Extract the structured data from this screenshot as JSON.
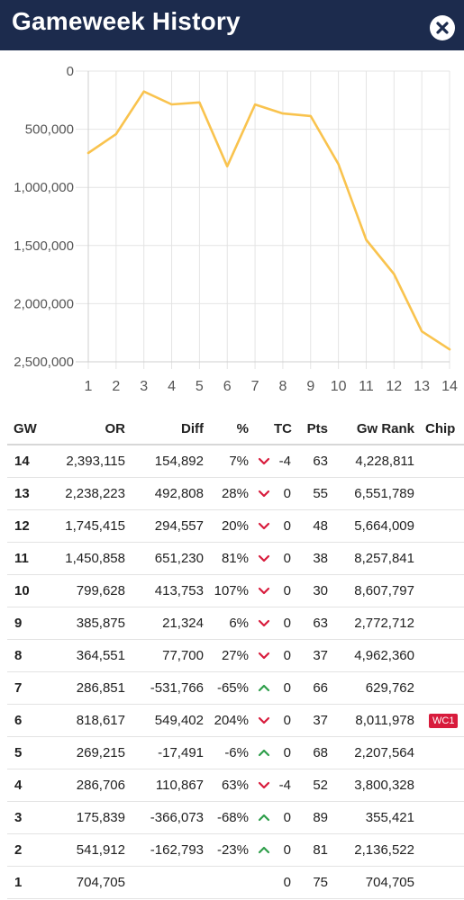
{
  "header": {
    "title": "Gameweek History"
  },
  "colors": {
    "header_bg": "#1c2b4d",
    "line": "#f9c34e",
    "up": "#2e9e4a",
    "down": "#d81b3c",
    "chip": "#d81b3c"
  },
  "chart_data": {
    "type": "line",
    "x": [
      1,
      2,
      3,
      4,
      5,
      6,
      7,
      8,
      9,
      10,
      11,
      12,
      13,
      14
    ],
    "values": [
      704705,
      541912,
      175839,
      286706,
      269215,
      818617,
      286851,
      364551,
      385875,
      799628,
      1450858,
      1745415,
      2238223,
      2393115
    ],
    "x_ticks": [
      "1",
      "2",
      "3",
      "4",
      "5",
      "6",
      "7",
      "8",
      "9",
      "10",
      "11",
      "12",
      "13",
      "14"
    ],
    "y_ticks": [
      "0",
      "500,000",
      "1,000,000",
      "1,500,000",
      "2,000,000",
      "2,500,000"
    ],
    "ylim": [
      0,
      2500000
    ],
    "y_inverted": true,
    "grid": true,
    "title": "",
    "xlabel": "",
    "ylabel": ""
  },
  "table": {
    "headers": {
      "gw": "GW",
      "or": "OR",
      "diff": "Diff",
      "pct": "%",
      "tc": "TC",
      "pts": "Pts",
      "gwrank": "Gw Rank",
      "chip": "Chip"
    },
    "rows": [
      {
        "gw": "14",
        "or": "2,393,115",
        "diff": "154,892",
        "pct": "7%",
        "dir": "down",
        "tc": "-4",
        "pts": "63",
        "gwrank": "4,228,811",
        "chip": ""
      },
      {
        "gw": "13",
        "or": "2,238,223",
        "diff": "492,808",
        "pct": "28%",
        "dir": "down",
        "tc": "0",
        "pts": "55",
        "gwrank": "6,551,789",
        "chip": ""
      },
      {
        "gw": "12",
        "or": "1,745,415",
        "diff": "294,557",
        "pct": "20%",
        "dir": "down",
        "tc": "0",
        "pts": "48",
        "gwrank": "5,664,009",
        "chip": ""
      },
      {
        "gw": "11",
        "or": "1,450,858",
        "diff": "651,230",
        "pct": "81%",
        "dir": "down",
        "tc": "0",
        "pts": "38",
        "gwrank": "8,257,841",
        "chip": ""
      },
      {
        "gw": "10",
        "or": "799,628",
        "diff": "413,753",
        "pct": "107%",
        "dir": "down",
        "tc": "0",
        "pts": "30",
        "gwrank": "8,607,797",
        "chip": ""
      },
      {
        "gw": "9",
        "or": "385,875",
        "diff": "21,324",
        "pct": "6%",
        "dir": "down",
        "tc": "0",
        "pts": "63",
        "gwrank": "2,772,712",
        "chip": ""
      },
      {
        "gw": "8",
        "or": "364,551",
        "diff": "77,700",
        "pct": "27%",
        "dir": "down",
        "tc": "0",
        "pts": "37",
        "gwrank": "4,962,360",
        "chip": ""
      },
      {
        "gw": "7",
        "or": "286,851",
        "diff": "-531,766",
        "pct": "-65%",
        "dir": "up",
        "tc": "0",
        "pts": "66",
        "gwrank": "629,762",
        "chip": ""
      },
      {
        "gw": "6",
        "or": "818,617",
        "diff": "549,402",
        "pct": "204%",
        "dir": "down",
        "tc": "0",
        "pts": "37",
        "gwrank": "8,011,978",
        "chip": "WC1"
      },
      {
        "gw": "5",
        "or": "269,215",
        "diff": "-17,491",
        "pct": "-6%",
        "dir": "up",
        "tc": "0",
        "pts": "68",
        "gwrank": "2,207,564",
        "chip": ""
      },
      {
        "gw": "4",
        "or": "286,706",
        "diff": "110,867",
        "pct": "63%",
        "dir": "down",
        "tc": "-4",
        "pts": "52",
        "gwrank": "3,800,328",
        "chip": ""
      },
      {
        "gw": "3",
        "or": "175,839",
        "diff": "-366,073",
        "pct": "-68%",
        "dir": "up",
        "tc": "0",
        "pts": "89",
        "gwrank": "355,421",
        "chip": ""
      },
      {
        "gw": "2",
        "or": "541,912",
        "diff": "-162,793",
        "pct": "-23%",
        "dir": "up",
        "tc": "0",
        "pts": "81",
        "gwrank": "2,136,522",
        "chip": ""
      },
      {
        "gw": "1",
        "or": "704,705",
        "diff": "",
        "pct": "",
        "dir": "",
        "tc": "0",
        "pts": "75",
        "gwrank": "704,705",
        "chip": ""
      }
    ]
  }
}
